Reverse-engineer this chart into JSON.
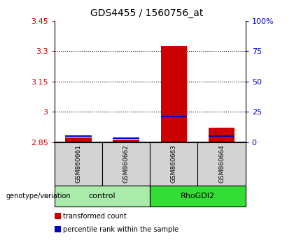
{
  "title": "GDS4455 / 1560756_at",
  "samples": [
    "GSM860661",
    "GSM860662",
    "GSM860663",
    "GSM860664"
  ],
  "red_values": [
    2.872,
    2.862,
    3.325,
    2.92
  ],
  "blue_values": [
    2.878,
    2.869,
    2.975,
    2.878
  ],
  "ylim_left": [
    2.85,
    3.45
  ],
  "yticks_left": [
    2.85,
    3.0,
    3.15,
    3.3,
    3.45
  ],
  "ytick_labels_left": [
    "2.85",
    "3",
    "3.15",
    "3.3",
    "3.45"
  ],
  "ylim_right": [
    0,
    100
  ],
  "yticks_right": [
    0,
    25,
    50,
    75,
    100
  ],
  "ytick_labels_right": [
    "0",
    "25",
    "50",
    "75",
    "100%"
  ],
  "groups": [
    {
      "label": "control",
      "indices": [
        0,
        1
      ],
      "color": "#aaeaaa"
    },
    {
      "label": "RhoGDI2",
      "indices": [
        2,
        3
      ],
      "color": "#33dd33"
    }
  ],
  "bar_width": 0.55,
  "red_color": "#cc0000",
  "blue_color": "#0000cc",
  "sample_box_color": "#d3d3d3",
  "legend_items": [
    {
      "color": "#cc0000",
      "label": "transformed count"
    },
    {
      "color": "#0000cc",
      "label": "percentile rank within the sample"
    }
  ],
  "genotype_label": "genotype/variation",
  "title_fontsize": 10,
  "tick_fontsize": 8,
  "label_fontsize": 8
}
